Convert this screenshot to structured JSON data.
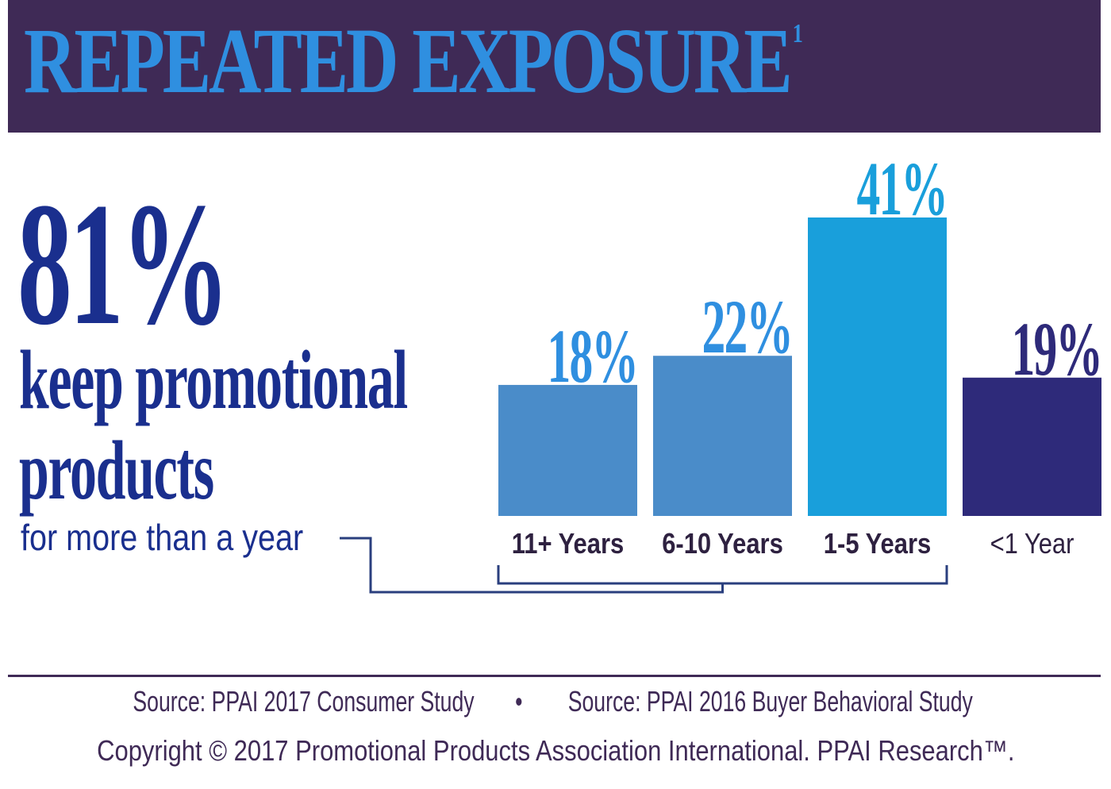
{
  "header": {
    "title": "REPEATED EXPOSURE",
    "footnote_marker": "1"
  },
  "headline": {
    "stat": "81%",
    "line1": "keep promotional",
    "line2": "products",
    "subtext": "for more than a year"
  },
  "chart_data": {
    "type": "bar",
    "categories": [
      "11+ Years",
      "6-10 Years",
      "1-5 Years",
      "<1 Year"
    ],
    "values": [
      18,
      22,
      41,
      19
    ],
    "value_labels": [
      "18%",
      "22%",
      "41%",
      "19%"
    ],
    "unit": "%",
    "ylim": [
      0,
      41
    ],
    "grid": false,
    "bar_colors": [
      "#4a8cc9",
      "#4a8cc9",
      "#199fdb",
      "#2e2a7a"
    ],
    "value_label_colors": [
      "#2f8fe0",
      "#2f8fe0",
      "#199fdb",
      "#2e2a7a"
    ],
    "bracket_groups_categories": [
      "11+ Years",
      "6-10 Years",
      "1-5 Years"
    ]
  },
  "footer": {
    "source1": "Source: PPAI 2017 Consumer Study",
    "separator": "•",
    "source2": "Source: PPAI 2016 Buyer Behavioral Study",
    "copyright": "Copyright © 2017 Promotional Products Association International. PPAI Research™."
  },
  "colors": {
    "banner": "#3f2a56",
    "title": "#2f8fe0",
    "headline": "#1a2f8e",
    "connector": "#2a3f7e"
  }
}
